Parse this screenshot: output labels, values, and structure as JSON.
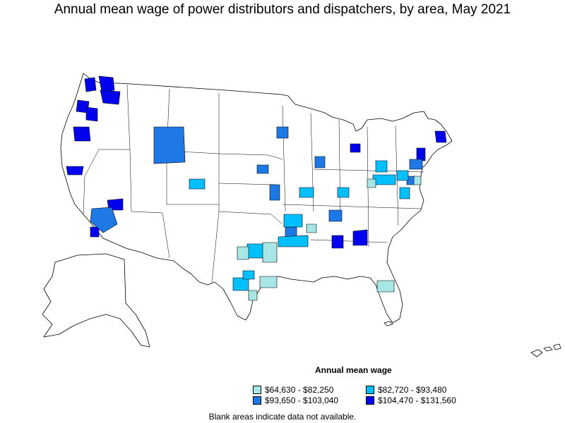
{
  "title": "Annual mean wage of power distributors and dispatchers, by area, May 2021",
  "legend": {
    "title": "Annual mean wage",
    "items": [
      {
        "label": "$64,630 - $82,250",
        "color": "#a8e6e6"
      },
      {
        "label": "$82,720 - $93,480",
        "color": "#00bfff"
      },
      {
        "label": "$93,650 - $103,040",
        "color": "#1e78e6"
      },
      {
        "label": "$104,470 - $131,560",
        "color": "#0000ee"
      }
    ]
  },
  "note": "Blank areas indicate data not available."
}
